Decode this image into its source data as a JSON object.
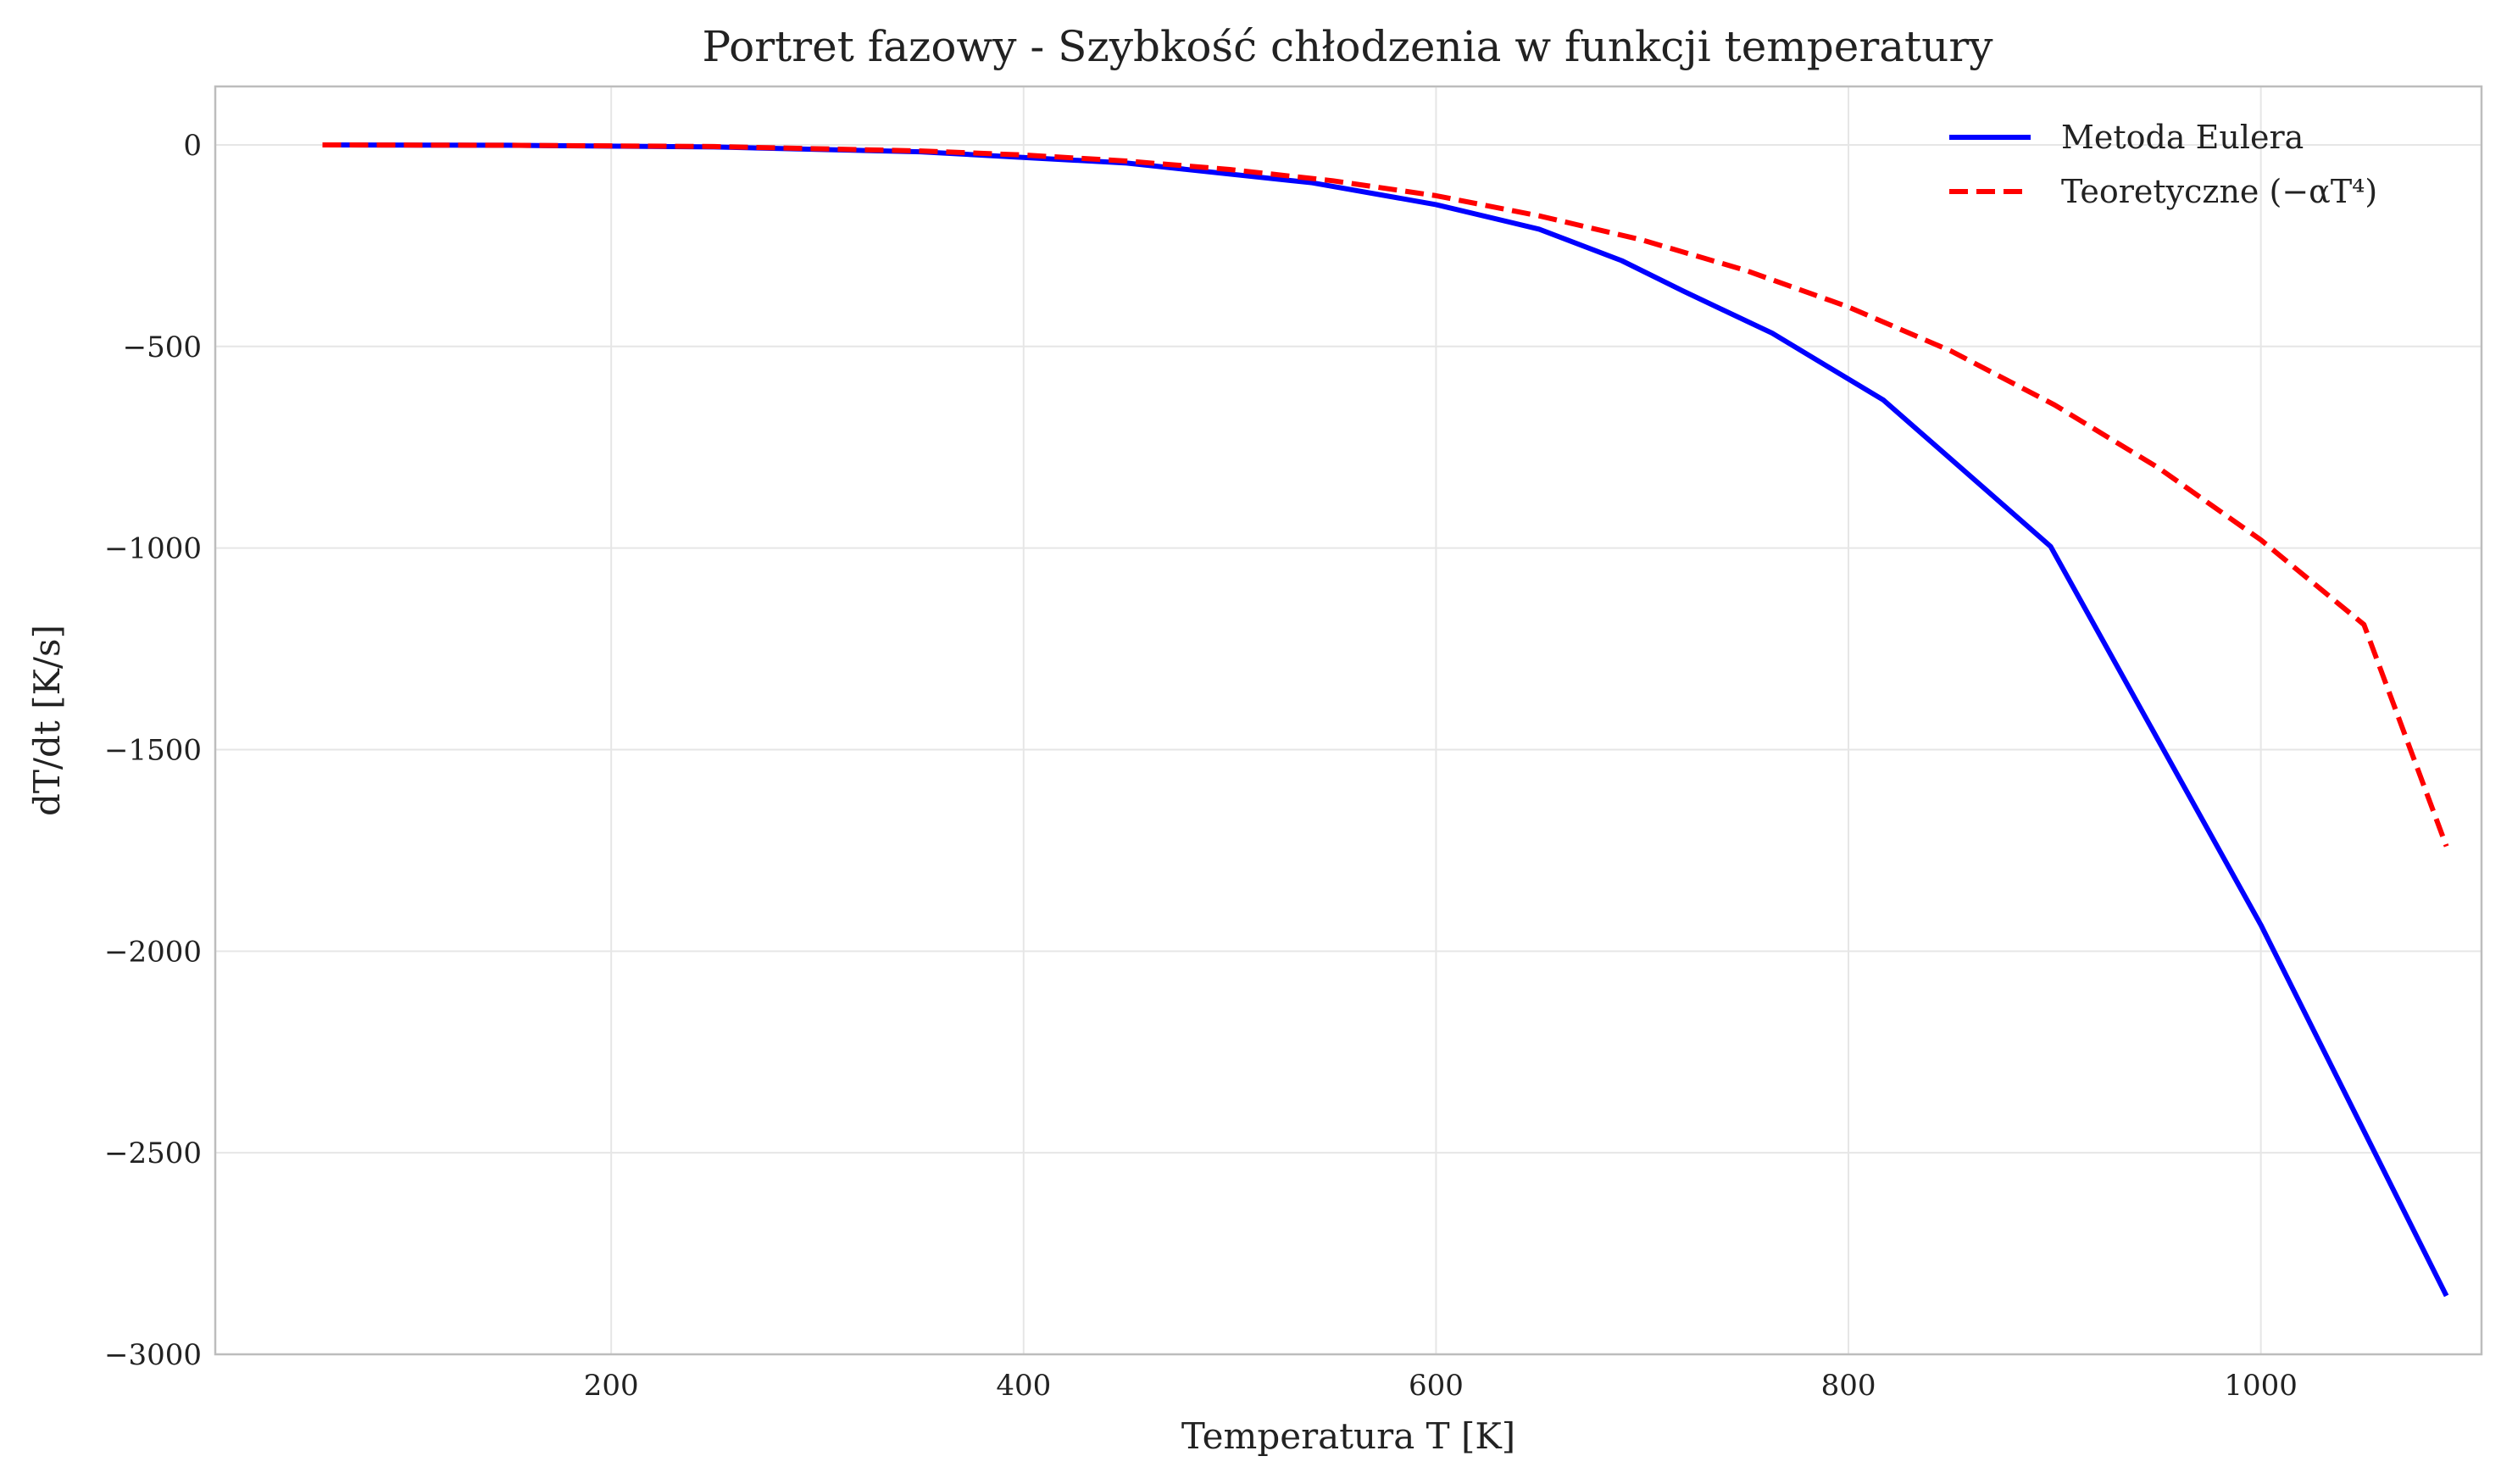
{
  "chart_data": {
    "type": "line",
    "title": "Portret fazowy - Szybkość chłodzenia w funkcji temperatury",
    "xlabel": "Temperatura T [K]",
    "ylabel": "dT/dt [K/s]",
    "xlim": [
      8,
      1107
    ],
    "ylim": [
      -3000,
      145
    ],
    "x_ticks": [
      200,
      400,
      600,
      800,
      1000
    ],
    "y_ticks": [
      0,
      -500,
      -1000,
      -1500,
      -2000,
      -2500,
      -3000
    ],
    "x_tick_labels": [
      "200",
      "400",
      "600",
      "800",
      "1000"
    ],
    "y_tick_labels": [
      "0",
      "−500",
      "−1000",
      "−1500",
      "−2000",
      "−2500",
      "−3000"
    ],
    "grid": true,
    "legend_position": "top-right",
    "series": [
      {
        "name": "Metoda Eulera",
        "color": "#0000ff",
        "style": "solid",
        "x": [
          60,
          150,
          250,
          350,
          450,
          540,
          600,
          650,
          690,
          720,
          763,
          817,
          898,
          1000,
          1090
        ],
        "y": [
          0,
          -1,
          -5,
          -17,
          -45,
          -94,
          -148,
          -209,
          -287,
          -363,
          -467,
          -633,
          -996,
          -1935,
          -2855
        ]
      },
      {
        "name": "Teoretyczne (−αT⁴)",
        "color": "#ff0000",
        "style": "dashed",
        "x": [
          60,
          150,
          250,
          350,
          400,
          450,
          500,
          550,
          600,
          650,
          700,
          750,
          800,
          850,
          900,
          950,
          1000,
          1050,
          1090
        ],
        "y": [
          0,
          -1,
          -4,
          -15,
          -25,
          -40,
          -61,
          -89,
          -126,
          -176,
          -236,
          -311,
          -402,
          -512,
          -645,
          -800,
          -980,
          -1190,
          -1740
        ]
      }
    ]
  }
}
